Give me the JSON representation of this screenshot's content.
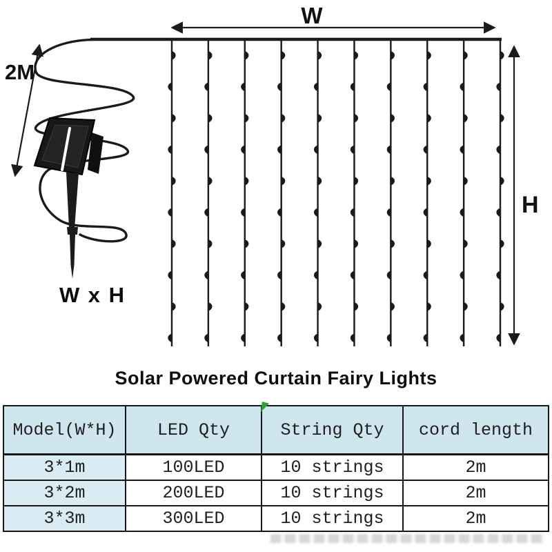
{
  "diagram": {
    "width_label": "W",
    "height_label": "H",
    "cord_length_label": "2M",
    "size_label": "W x H",
    "string_count": 10,
    "leds_per_string": 10,
    "line_color": "#1b1b1b"
  },
  "title": "Solar Powered Curtain Fairy Lights",
  "table": {
    "headers": [
      "Model(W*H)",
      "LED Qty",
      "String Qty",
      "cord length"
    ],
    "rows": [
      [
        "3*1m",
        "100LED",
        "10 strings",
        "2m"
      ],
      [
        "3*2m",
        "200LED",
        "10 strings",
        "2m"
      ],
      [
        "3*3m",
        "300LED",
        "10 strings",
        "2m"
      ]
    ],
    "colors": {
      "header_bg": "#cfe6ef",
      "first_col_bg": "#d9ecf4",
      "border": "#161616",
      "flag": "#2f9e32"
    }
  }
}
